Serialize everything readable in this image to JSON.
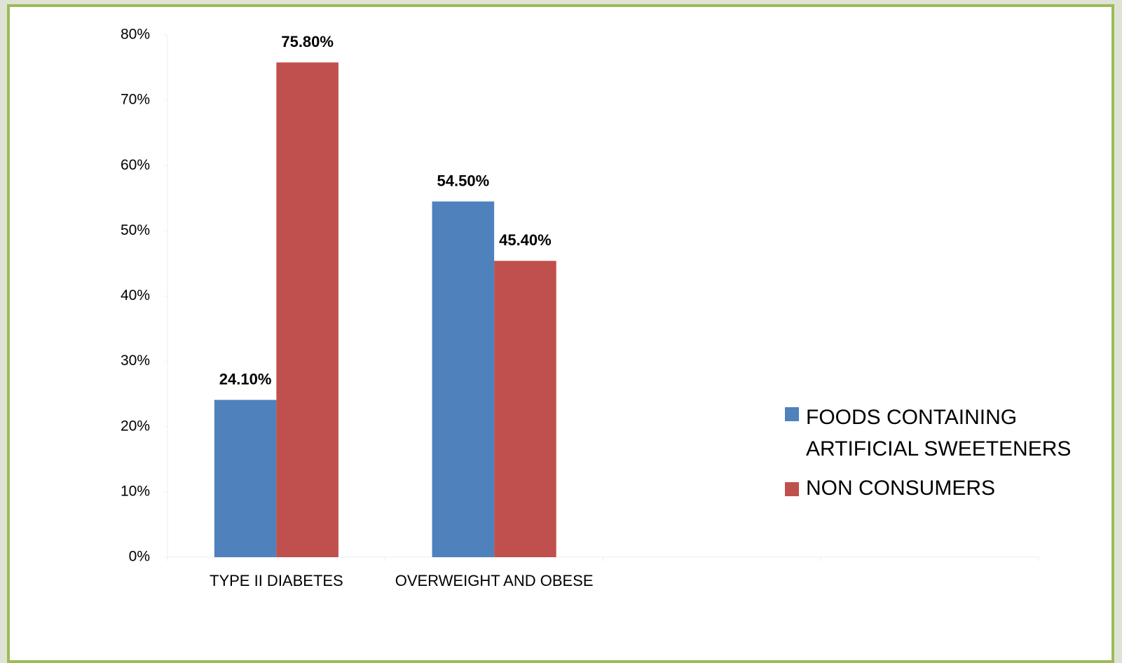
{
  "chart_data": {
    "type": "bar",
    "categories": [
      "TYPE II DIABETES",
      "OVERWEIGHT AND OBESE",
      null,
      null
    ],
    "series": [
      {
        "name": "FOODS CONTAINING ARTIFICIAL SWEETENERS",
        "color": "#4f81bd",
        "values": [
          24.1,
          54.5,
          null,
          null
        ],
        "value_labels": [
          "24.10%",
          "54.50%",
          null,
          null
        ]
      },
      {
        "name": "NON CONSUMERS",
        "color": "#c0504d",
        "values": [
          75.8,
          45.4,
          null,
          null
        ],
        "value_labels": [
          "75.80%",
          "45.40%",
          null,
          null
        ]
      }
    ],
    "ylim": [
      0,
      80
    ],
    "yticks": [
      {
        "value": 0,
        "label": "0%"
      },
      {
        "value": 10,
        "label": "10%"
      },
      {
        "value": 20,
        "label": "20%"
      },
      {
        "value": 30,
        "label": "30%"
      },
      {
        "value": 40,
        "label": "40%"
      },
      {
        "value": 50,
        "label": "50%"
      },
      {
        "value": 60,
        "label": "60%"
      },
      {
        "value": 70,
        "label": "70%"
      },
      {
        "value": 80,
        "label": "80%"
      }
    ],
    "legend": "right"
  }
}
